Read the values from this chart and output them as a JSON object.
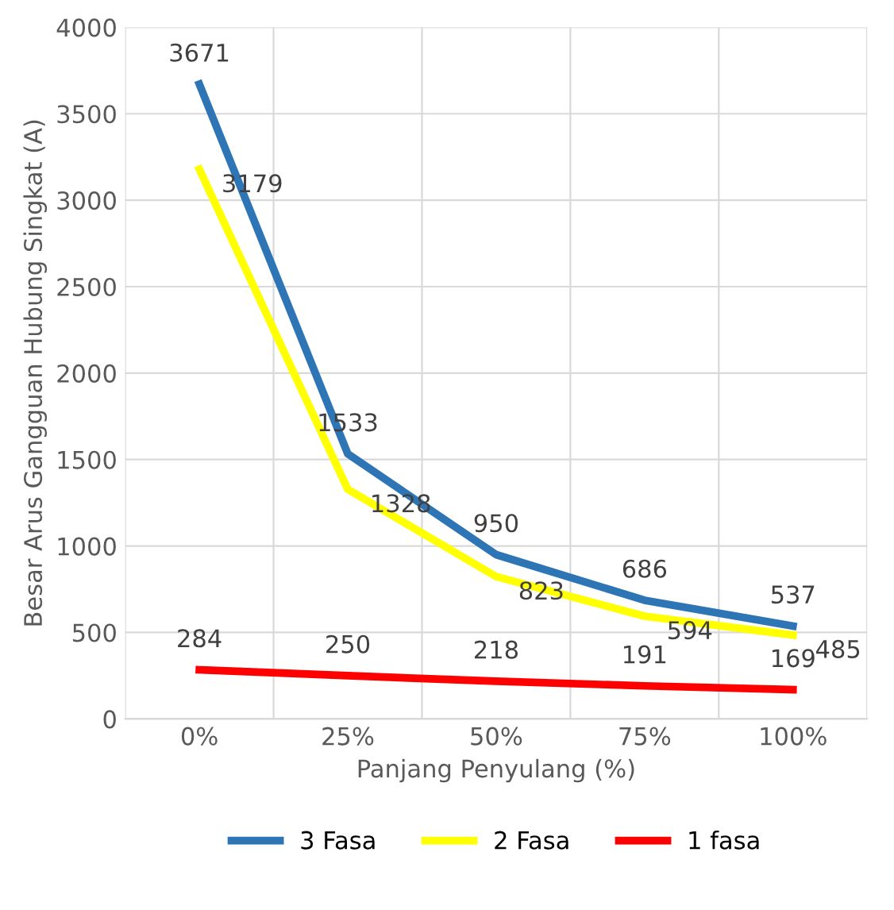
{
  "chart_data": {
    "type": "line",
    "xlabel": "Panjang Penyulang (%)",
    "ylabel": "Besar Arus Gangguan Hubung Singkat (A)",
    "categories": [
      "0%",
      "25%",
      "50%",
      "75%",
      "100%"
    ],
    "series": [
      {
        "name": "3 Fasa",
        "color": "#2e75b6",
        "values": [
          3671,
          1533,
          950,
          686,
          537
        ]
      },
      {
        "name": "2 Fasa",
        "color": "#ffff00",
        "values": [
          3179,
          1328,
          823,
          594,
          485
        ]
      },
      {
        "name": "1 fasa",
        "color": "#ff0000",
        "values": [
          284,
          250,
          218,
          191,
          169
        ]
      }
    ],
    "ylim": [
      0,
      4000
    ],
    "yticks": [
      0,
      500,
      1000,
      1500,
      2000,
      2500,
      3000,
      3500,
      4000
    ],
    "data_labels": true,
    "grid": true,
    "legend": "bottom",
    "marker": "none",
    "line_style": "solid"
  }
}
